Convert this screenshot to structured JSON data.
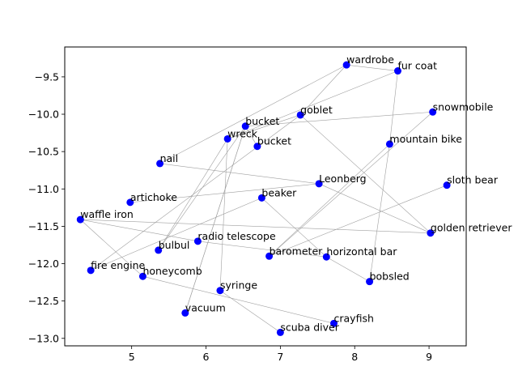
{
  "chart_data": {
    "type": "scatter",
    "title": "",
    "xlabel": "",
    "ylabel": "",
    "xlim": [
      4.1,
      9.5
    ],
    "ylim": [
      -13.1,
      -9.1
    ],
    "xticks": [
      5,
      6,
      7,
      8,
      9
    ],
    "yticks": [
      -9.5,
      -10.0,
      -10.5,
      -11.0,
      -11.5,
      -12.0,
      -12.5,
      -13.0
    ],
    "grid": false,
    "point_color": "#0000ff",
    "edge_color": "#a0a0a0",
    "points": [
      {
        "label": "wardrobe",
        "x": 7.89,
        "y": -9.34
      },
      {
        "label": "fur coat",
        "x": 8.58,
        "y": -9.42
      },
      {
        "label": "snowmobile",
        "x": 9.05,
        "y": -9.97
      },
      {
        "label": "goblet",
        "x": 7.27,
        "y": -10.01
      },
      {
        "label": "bucket",
        "x": 6.53,
        "y": -10.16
      },
      {
        "label": "wreck",
        "x": 6.29,
        "y": -10.33
      },
      {
        "label": "bucket",
        "x": 6.69,
        "y": -10.43
      },
      {
        "label": "mountain bike",
        "x": 8.47,
        "y": -10.4
      },
      {
        "label": "nail",
        "x": 5.38,
        "y": -10.66
      },
      {
        "label": "Leonberg",
        "x": 7.52,
        "y": -10.93
      },
      {
        "label": "sloth bear",
        "x": 9.24,
        "y": -10.95
      },
      {
        "label": "beaker",
        "x": 6.75,
        "y": -11.12
      },
      {
        "label": "artichoke",
        "x": 4.98,
        "y": -11.18
      },
      {
        "label": "waffle iron",
        "x": 4.31,
        "y": -11.41
      },
      {
        "label": "golden retriever",
        "x": 9.02,
        "y": -11.59
      },
      {
        "label": "radio telescope",
        "x": 5.89,
        "y": -11.7
      },
      {
        "label": "bulbul",
        "x": 5.36,
        "y": -11.82
      },
      {
        "label": "barometer",
        "x": 6.85,
        "y": -11.9
      },
      {
        "label": "horizontal bar",
        "x": 7.62,
        "y": -11.91
      },
      {
        "label": "fire engine",
        "x": 4.45,
        "y": -12.09
      },
      {
        "label": "honeycomb",
        "x": 5.15,
        "y": -12.17
      },
      {
        "label": "bobsled",
        "x": 8.2,
        "y": -12.24
      },
      {
        "label": "syringe",
        "x": 6.19,
        "y": -12.36
      },
      {
        "label": "vacuum",
        "x": 5.72,
        "y": -12.66
      },
      {
        "label": "crayfish",
        "x": 7.72,
        "y": -12.8
      },
      {
        "label": "scuba diver",
        "x": 7.0,
        "y": -12.92
      }
    ],
    "edges": [
      [
        "wardrobe",
        "fur coat"
      ],
      [
        "wardrobe",
        "goblet"
      ],
      [
        "wardrobe",
        "nail"
      ],
      [
        "fur coat",
        "wreck"
      ],
      [
        "fur coat",
        "mountain bike"
      ],
      [
        "snowmobile",
        "bucket"
      ],
      [
        "snowmobile",
        "barometer"
      ],
      [
        "goblet",
        "golden retriever"
      ],
      [
        "goblet",
        "fire engine"
      ],
      [
        "goblet",
        "wreck"
      ],
      [
        "bucket",
        "bulbul"
      ],
      [
        "bucket",
        "bucket"
      ],
      [
        "bucket",
        "vacuum"
      ],
      [
        "wreck",
        "bulbul"
      ],
      [
        "wreck",
        "syringe"
      ],
      [
        "mountain bike",
        "barometer"
      ],
      [
        "mountain bike",
        "bobsled"
      ],
      [
        "nail",
        "Leonberg"
      ],
      [
        "Leonberg",
        "golden retriever"
      ],
      [
        "Leonberg",
        "artichoke"
      ],
      [
        "sloth bear",
        "barometer"
      ],
      [
        "beaker",
        "fire engine"
      ],
      [
        "beaker",
        "horizontal bar"
      ],
      [
        "waffle iron",
        "golden retriever"
      ],
      [
        "waffle iron",
        "radio telescope"
      ],
      [
        "waffle iron",
        "honeycomb"
      ],
      [
        "radio telescope",
        "horizontal bar"
      ],
      [
        "horizontal bar",
        "bobsled"
      ],
      [
        "honeycomb",
        "crayfish"
      ],
      [
        "syringe",
        "scuba diver"
      ],
      [
        "vacuum",
        "bucket"
      ]
    ]
  }
}
